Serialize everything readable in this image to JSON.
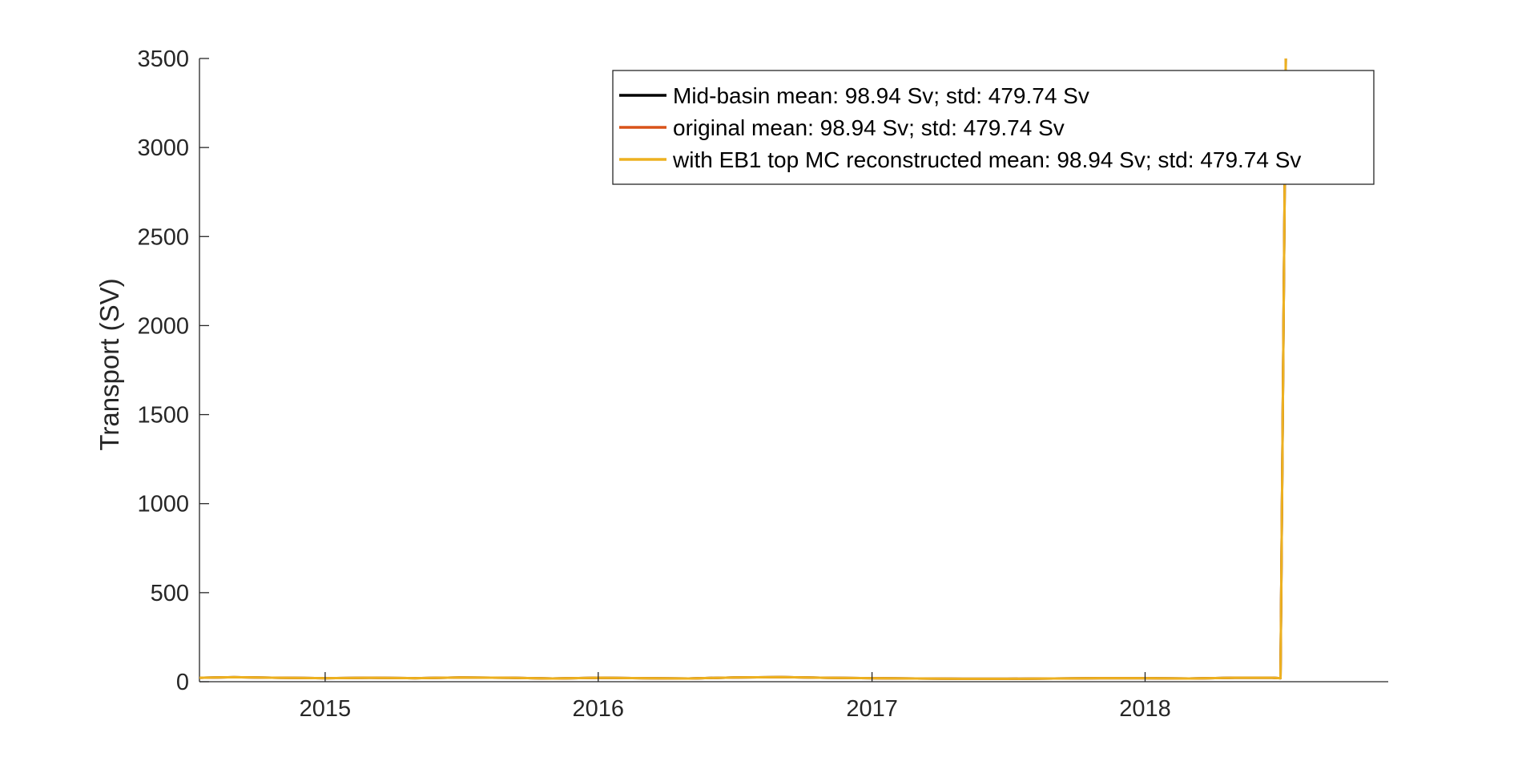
{
  "chart_data": {
    "type": "line",
    "title": "",
    "xlabel": "",
    "ylabel": "Transport (SV)",
    "xlim": [
      "2014-07-17",
      "2018-11-22"
    ],
    "ylim": [
      0,
      3500
    ],
    "x_ticks": [
      "2015-01-01",
      "2016-01-01",
      "2017-01-01",
      "2018-01-01"
    ],
    "x_tick_labels": [
      "2015",
      "2016",
      "2017",
      "2018"
    ],
    "y_ticks": [
      0,
      500,
      1000,
      1500,
      2000,
      2500,
      3000,
      3500
    ],
    "y_tick_labels": [
      "0",
      "500",
      "1000",
      "1500",
      "2000",
      "2500",
      "3000",
      "3500"
    ],
    "grid": false,
    "legend_position": "top-right",
    "series": [
      {
        "name": "Mid-basin mean: 98.94 Sv; std: 479.74 Sv",
        "color": "#000000",
        "x": [
          "2014-07-17",
          "2014-09-01",
          "2014-11-01",
          "2015-01-01",
          "2015-03-01",
          "2015-05-01",
          "2015-07-01",
          "2015-09-01",
          "2015-11-01",
          "2016-01-01",
          "2016-03-01",
          "2016-05-01",
          "2016-07-01",
          "2016-09-01",
          "2016-11-01",
          "2017-01-01",
          "2017-03-01",
          "2017-05-01",
          "2017-07-01",
          "2017-09-01",
          "2017-11-01",
          "2018-01-01",
          "2018-03-01",
          "2018-05-01",
          "2018-06-20",
          "2018-07-01",
          "2018-07-08"
        ],
        "y": [
          22,
          25,
          22,
          20,
          22,
          20,
          24,
          22,
          18,
          22,
          20,
          18,
          24,
          26,
          22,
          20,
          18,
          16,
          16,
          18,
          20,
          20,
          18,
          22,
          22,
          20,
          3500
        ]
      },
      {
        "name": "original  mean: 98.94 Sv; std: 479.74 Sv",
        "color": "#D95319",
        "x": [
          "2014-07-17",
          "2014-09-01",
          "2014-11-01",
          "2015-01-01",
          "2015-03-01",
          "2015-05-01",
          "2015-07-01",
          "2015-09-01",
          "2015-11-01",
          "2016-01-01",
          "2016-03-01",
          "2016-05-01",
          "2016-07-01",
          "2016-09-01",
          "2016-11-01",
          "2017-01-01",
          "2017-03-01",
          "2017-05-01",
          "2017-07-01",
          "2017-09-01",
          "2017-11-01",
          "2018-01-01",
          "2018-03-01",
          "2018-05-01",
          "2018-06-20",
          "2018-07-01",
          "2018-07-08"
        ],
        "y": [
          22,
          25,
          22,
          20,
          22,
          20,
          24,
          22,
          18,
          22,
          20,
          18,
          24,
          26,
          22,
          20,
          18,
          16,
          16,
          18,
          20,
          20,
          18,
          22,
          22,
          20,
          3500
        ]
      },
      {
        "name": "with EB1 top MC reconstructed   mean: 98.94 Sv; std: 479.74 Sv",
        "color": "#EDB120",
        "x": [
          "2014-07-17",
          "2014-09-01",
          "2014-11-01",
          "2015-01-01",
          "2015-03-01",
          "2015-05-01",
          "2015-07-01",
          "2015-09-01",
          "2015-11-01",
          "2016-01-01",
          "2016-03-01",
          "2016-05-01",
          "2016-07-01",
          "2016-09-01",
          "2016-11-01",
          "2017-01-01",
          "2017-03-01",
          "2017-05-01",
          "2017-07-01",
          "2017-09-01",
          "2017-11-01",
          "2018-01-01",
          "2018-03-01",
          "2018-05-01",
          "2018-06-20",
          "2018-07-01",
          "2018-07-08"
        ],
        "y": [
          22,
          25,
          22,
          20,
          22,
          20,
          24,
          22,
          18,
          22,
          20,
          18,
          24,
          26,
          22,
          20,
          18,
          16,
          16,
          18,
          20,
          20,
          18,
          22,
          22,
          20,
          3500
        ]
      }
    ]
  }
}
